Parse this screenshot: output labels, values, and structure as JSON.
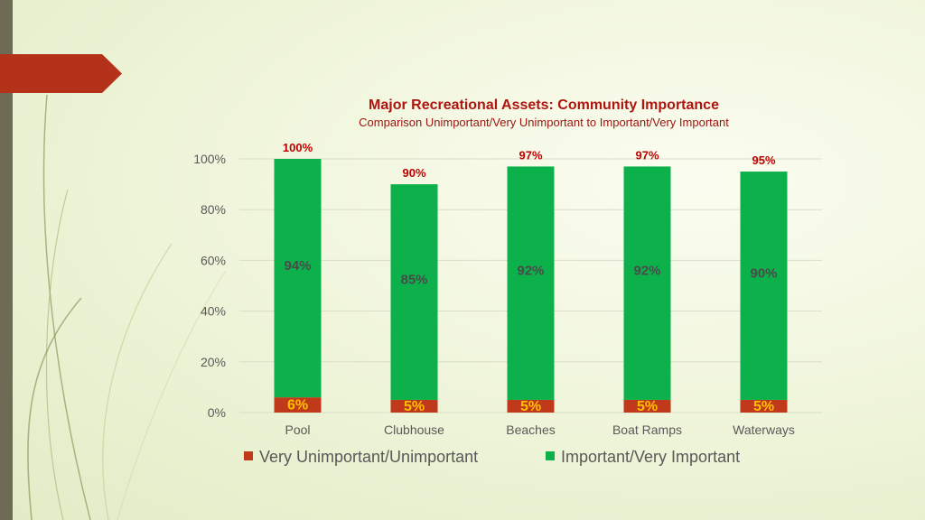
{
  "colors": {
    "very_unimportant": "#c0391a",
    "important": "#0db14b",
    "total_label": "#c00000",
    "red_label": "#ffc000",
    "accent_tab": "#b5321a"
  },
  "chart_data": {
    "type": "bar",
    "stacked": true,
    "title": "Major Recreational Assets: Community Importance",
    "subtitle": "Comparison Unimportant/Very Unimportant to Important/Very Important",
    "categories": [
      "Pool",
      "Clubhouse",
      "Beaches",
      "Boat Ramps",
      "Waterways"
    ],
    "series": [
      {
        "name": "Very Unimportant/Unimportant",
        "values": [
          6,
          5,
          5,
          5,
          5
        ],
        "labels": [
          "6%",
          "5%",
          "5%",
          "5%",
          "5%"
        ]
      },
      {
        "name": "Important/Very Important",
        "values": [
          94,
          85,
          92,
          92,
          90
        ],
        "labels": [
          "94%",
          "85%",
          "92%",
          "92%",
          "90%"
        ]
      }
    ],
    "totals": {
      "values": [
        100,
        90,
        97,
        97,
        95
      ],
      "labels": [
        "100%",
        "90%",
        "97%",
        "97%",
        "95%"
      ]
    },
    "ylim": [
      0,
      100
    ],
    "yticks": [
      {
        "value": 0,
        "label": "0%"
      },
      {
        "value": 20,
        "label": "20%"
      },
      {
        "value": 40,
        "label": "40%"
      },
      {
        "value": 60,
        "label": "60%"
      },
      {
        "value": 80,
        "label": "80%"
      },
      {
        "value": 100,
        "label": "100%"
      }
    ],
    "grid": true,
    "legend": "bottom"
  }
}
